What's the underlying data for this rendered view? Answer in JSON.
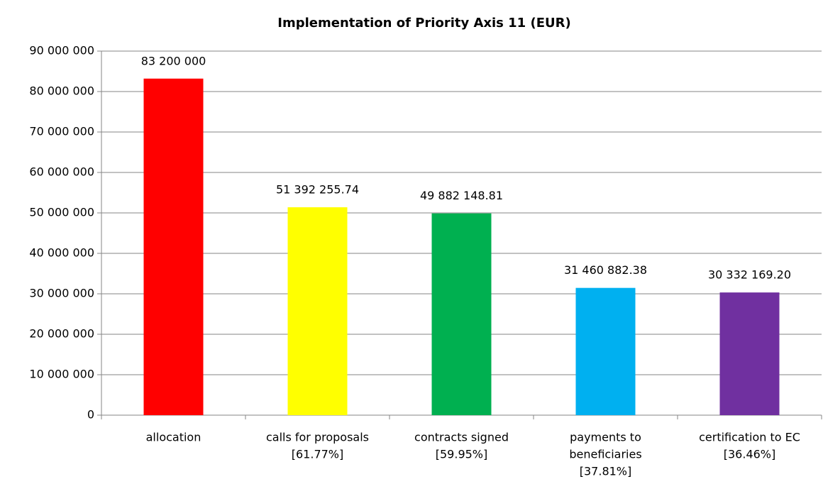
{
  "chart_data": {
    "type": "bar",
    "title": "Implementation of Priority Axis 11 (EUR)",
    "categories": [
      [
        "allocation"
      ],
      [
        "calls for proposals",
        "[61.77%]"
      ],
      [
        "contracts signed",
        "[59.95%]"
      ],
      [
        "payments to",
        "beneficiaries",
        "[37.81%]"
      ],
      [
        "certification to EC",
        "[36.46%]"
      ]
    ],
    "values": [
      83200000,
      51392255.74,
      49882148.81,
      31460882.38,
      30332169.2
    ],
    "value_labels": [
      "83 200 000",
      "51 392 255.74",
      "49 882 148.81",
      "31 460 882.38",
      "30 332 169.20"
    ],
    "colors": [
      "#ff0000",
      "#ffff00",
      "#00b050",
      "#00b0f0",
      "#7030a0"
    ],
    "ylim": [
      0,
      90000000
    ],
    "yticks": [
      0,
      {
        "value": 10000000,
        "label": "10 000 000"
      },
      {
        "value": 20000000,
        "label": "20 000 000"
      },
      {
        "value": 30000000,
        "label": "30 000 000"
      },
      {
        "value": 40000000,
        "label": "40 000 000"
      },
      {
        "value": 50000000,
        "label": "50 000 000"
      },
      {
        "value": 60000000,
        "label": "60 000 000"
      },
      {
        "value": 70000000,
        "label": "70 000 000"
      },
      {
        "value": 80000000,
        "label": "80 000 000"
      },
      {
        "value": 90000000,
        "label": "90 000 000"
      }
    ],
    "grid": true
  }
}
